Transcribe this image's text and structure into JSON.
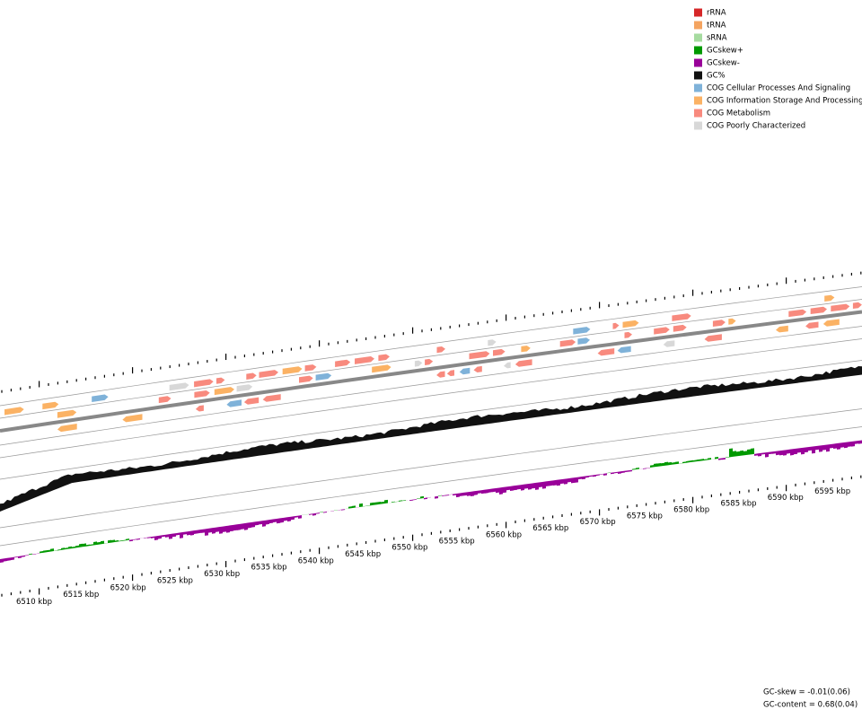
{
  "legend": [
    {
      "label": "rRNA",
      "color": "#d62728"
    },
    {
      "label": "tRNA",
      "color": "#f4a460"
    },
    {
      "label": "sRNA",
      "color": "#a6dba0"
    },
    {
      "label": "GCskew+",
      "color": "#009900"
    },
    {
      "label": "GCskew-",
      "color": "#990099"
    },
    {
      "label": "GC%",
      "color": "#111111"
    },
    {
      "label": "COG Cellular Processes And Signaling",
      "color": "#7fb2d9"
    },
    {
      "label": "COG Information Storage And Processing",
      "color": "#fbb264"
    },
    {
      "label": "COG Metabolism",
      "color": "#f88a7e"
    },
    {
      "label": "COG Poorly Characterized",
      "color": "#d8d8d8"
    }
  ],
  "scale_labels": [
    "6510 kbp",
    "6515 kbp",
    "6520 kbp",
    "6525 kbp",
    "6530 kbp",
    "6535 kbp",
    "6540 kbp",
    "6545 kbp",
    "6550 kbp",
    "6555 kbp",
    "6560 kbp",
    "6565 kbp",
    "6570 kbp",
    "6575 kbp",
    "6580 kbp",
    "6585 kbp",
    "6590 kbp",
    "6595 kbp"
  ],
  "stats": {
    "gc_skew": "GC-skew = -0.01(0.06)",
    "gc_content": "GC-content = 0.68(0.04)"
  }
}
